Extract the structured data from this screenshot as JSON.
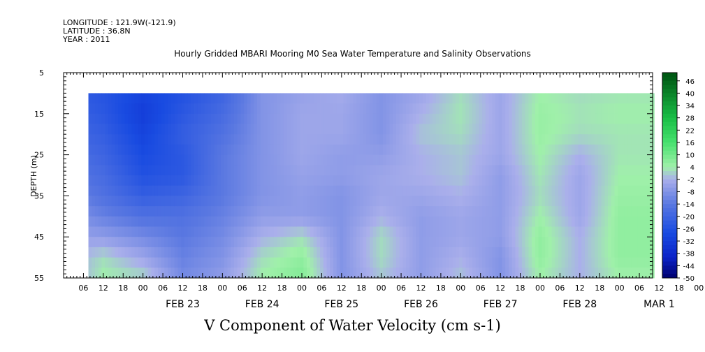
{
  "header": {
    "longitude": "LONGITUDE : 121.9W(-121.9)",
    "latitude": "LATITUDE : 36.8N",
    "year": "YEAR : 2011"
  },
  "chart_data": {
    "type": "heatmap",
    "title": "Hourly Gridded MBARI Mooring M0 Sea Water Temperature and Salinity Observations",
    "xlabel": "V Component of Water Velocity (cm s-1)",
    "ylabel": "DEPTH (m)",
    "ylim": [
      5,
      55
    ],
    "y_ticks": [
      5,
      15,
      25,
      35,
      45,
      55
    ],
    "x_hour_ticks": [
      "06",
      "12",
      "18",
      "00",
      "06",
      "12",
      "18",
      "00",
      "06",
      "12",
      "18",
      "00",
      "06",
      "12",
      "18",
      "00",
      "06",
      "12",
      "18",
      "00",
      "06",
      "12",
      "18",
      "00",
      "06",
      "12",
      "18",
      "00",
      "06",
      "12",
      "18",
      "00"
    ],
    "x_day_labels": [
      "FEB 23",
      "FEB 24",
      "FEB 25",
      "FEB 26",
      "FEB 27",
      "FEB 28",
      "MAR  1"
    ],
    "colorbar": {
      "labels": [
        "46",
        "40",
        "34",
        "28",
        "22",
        "16",
        "10",
        "4",
        "-2",
        "-8",
        "-14",
        "-20",
        "-26",
        "-32",
        "-38",
        "-44",
        "-50"
      ],
      "min": -50,
      "max": 50
    },
    "data_depth_range": [
      10,
      55
    ],
    "field_rows_depth": [
      10,
      15,
      20,
      25,
      30,
      35,
      40,
      45,
      50,
      55
    ],
    "field_cols_hours_since_feb22_00": [
      0,
      12,
      24,
      36,
      48,
      60,
      72,
      84,
      96,
      108,
      120,
      132,
      144,
      156,
      168
    ],
    "field_values": [
      [
        -22,
        -25,
        -30,
        -26,
        -20,
        -8,
        -5,
        -3,
        -8,
        -4,
        2,
        -4,
        4,
        2,
        3
      ],
      [
        -20,
        -24,
        -32,
        -24,
        -18,
        -8,
        -4,
        -4,
        -8,
        -2,
        3,
        -4,
        5,
        3,
        4
      ],
      [
        -18,
        -22,
        -30,
        -22,
        -16,
        -8,
        -4,
        -4,
        -8,
        0,
        2,
        -4,
        5,
        2,
        3
      ],
      [
        -16,
        -20,
        -28,
        -24,
        -14,
        -8,
        -4,
        -6,
        -6,
        -2,
        0,
        -4,
        4,
        -2,
        3
      ],
      [
        -14,
        -18,
        -26,
        -24,
        -14,
        -8,
        -5,
        -6,
        -4,
        -2,
        0,
        -6,
        3,
        -4,
        4
      ],
      [
        -10,
        -16,
        -22,
        -20,
        -14,
        -8,
        -6,
        -8,
        -4,
        -4,
        -2,
        -6,
        2,
        -4,
        5
      ],
      [
        -6,
        -12,
        -16,
        -16,
        -12,
        -6,
        -6,
        -8,
        -2,
        -6,
        -4,
        -6,
        4,
        -4,
        6
      ],
      [
        -4,
        -6,
        -10,
        -14,
        -10,
        -2,
        2,
        -8,
        2,
        -6,
        -4,
        -6,
        6,
        -2,
        6
      ],
      [
        -4,
        2,
        -4,
        -12,
        -8,
        2,
        6,
        -8,
        2,
        -6,
        -2,
        -8,
        6,
        -2,
        6
      ],
      [
        -6,
        4,
        2,
        -10,
        -6,
        4,
        8,
        -8,
        0,
        -6,
        0,
        -8,
        4,
        -2,
        4
      ]
    ]
  }
}
